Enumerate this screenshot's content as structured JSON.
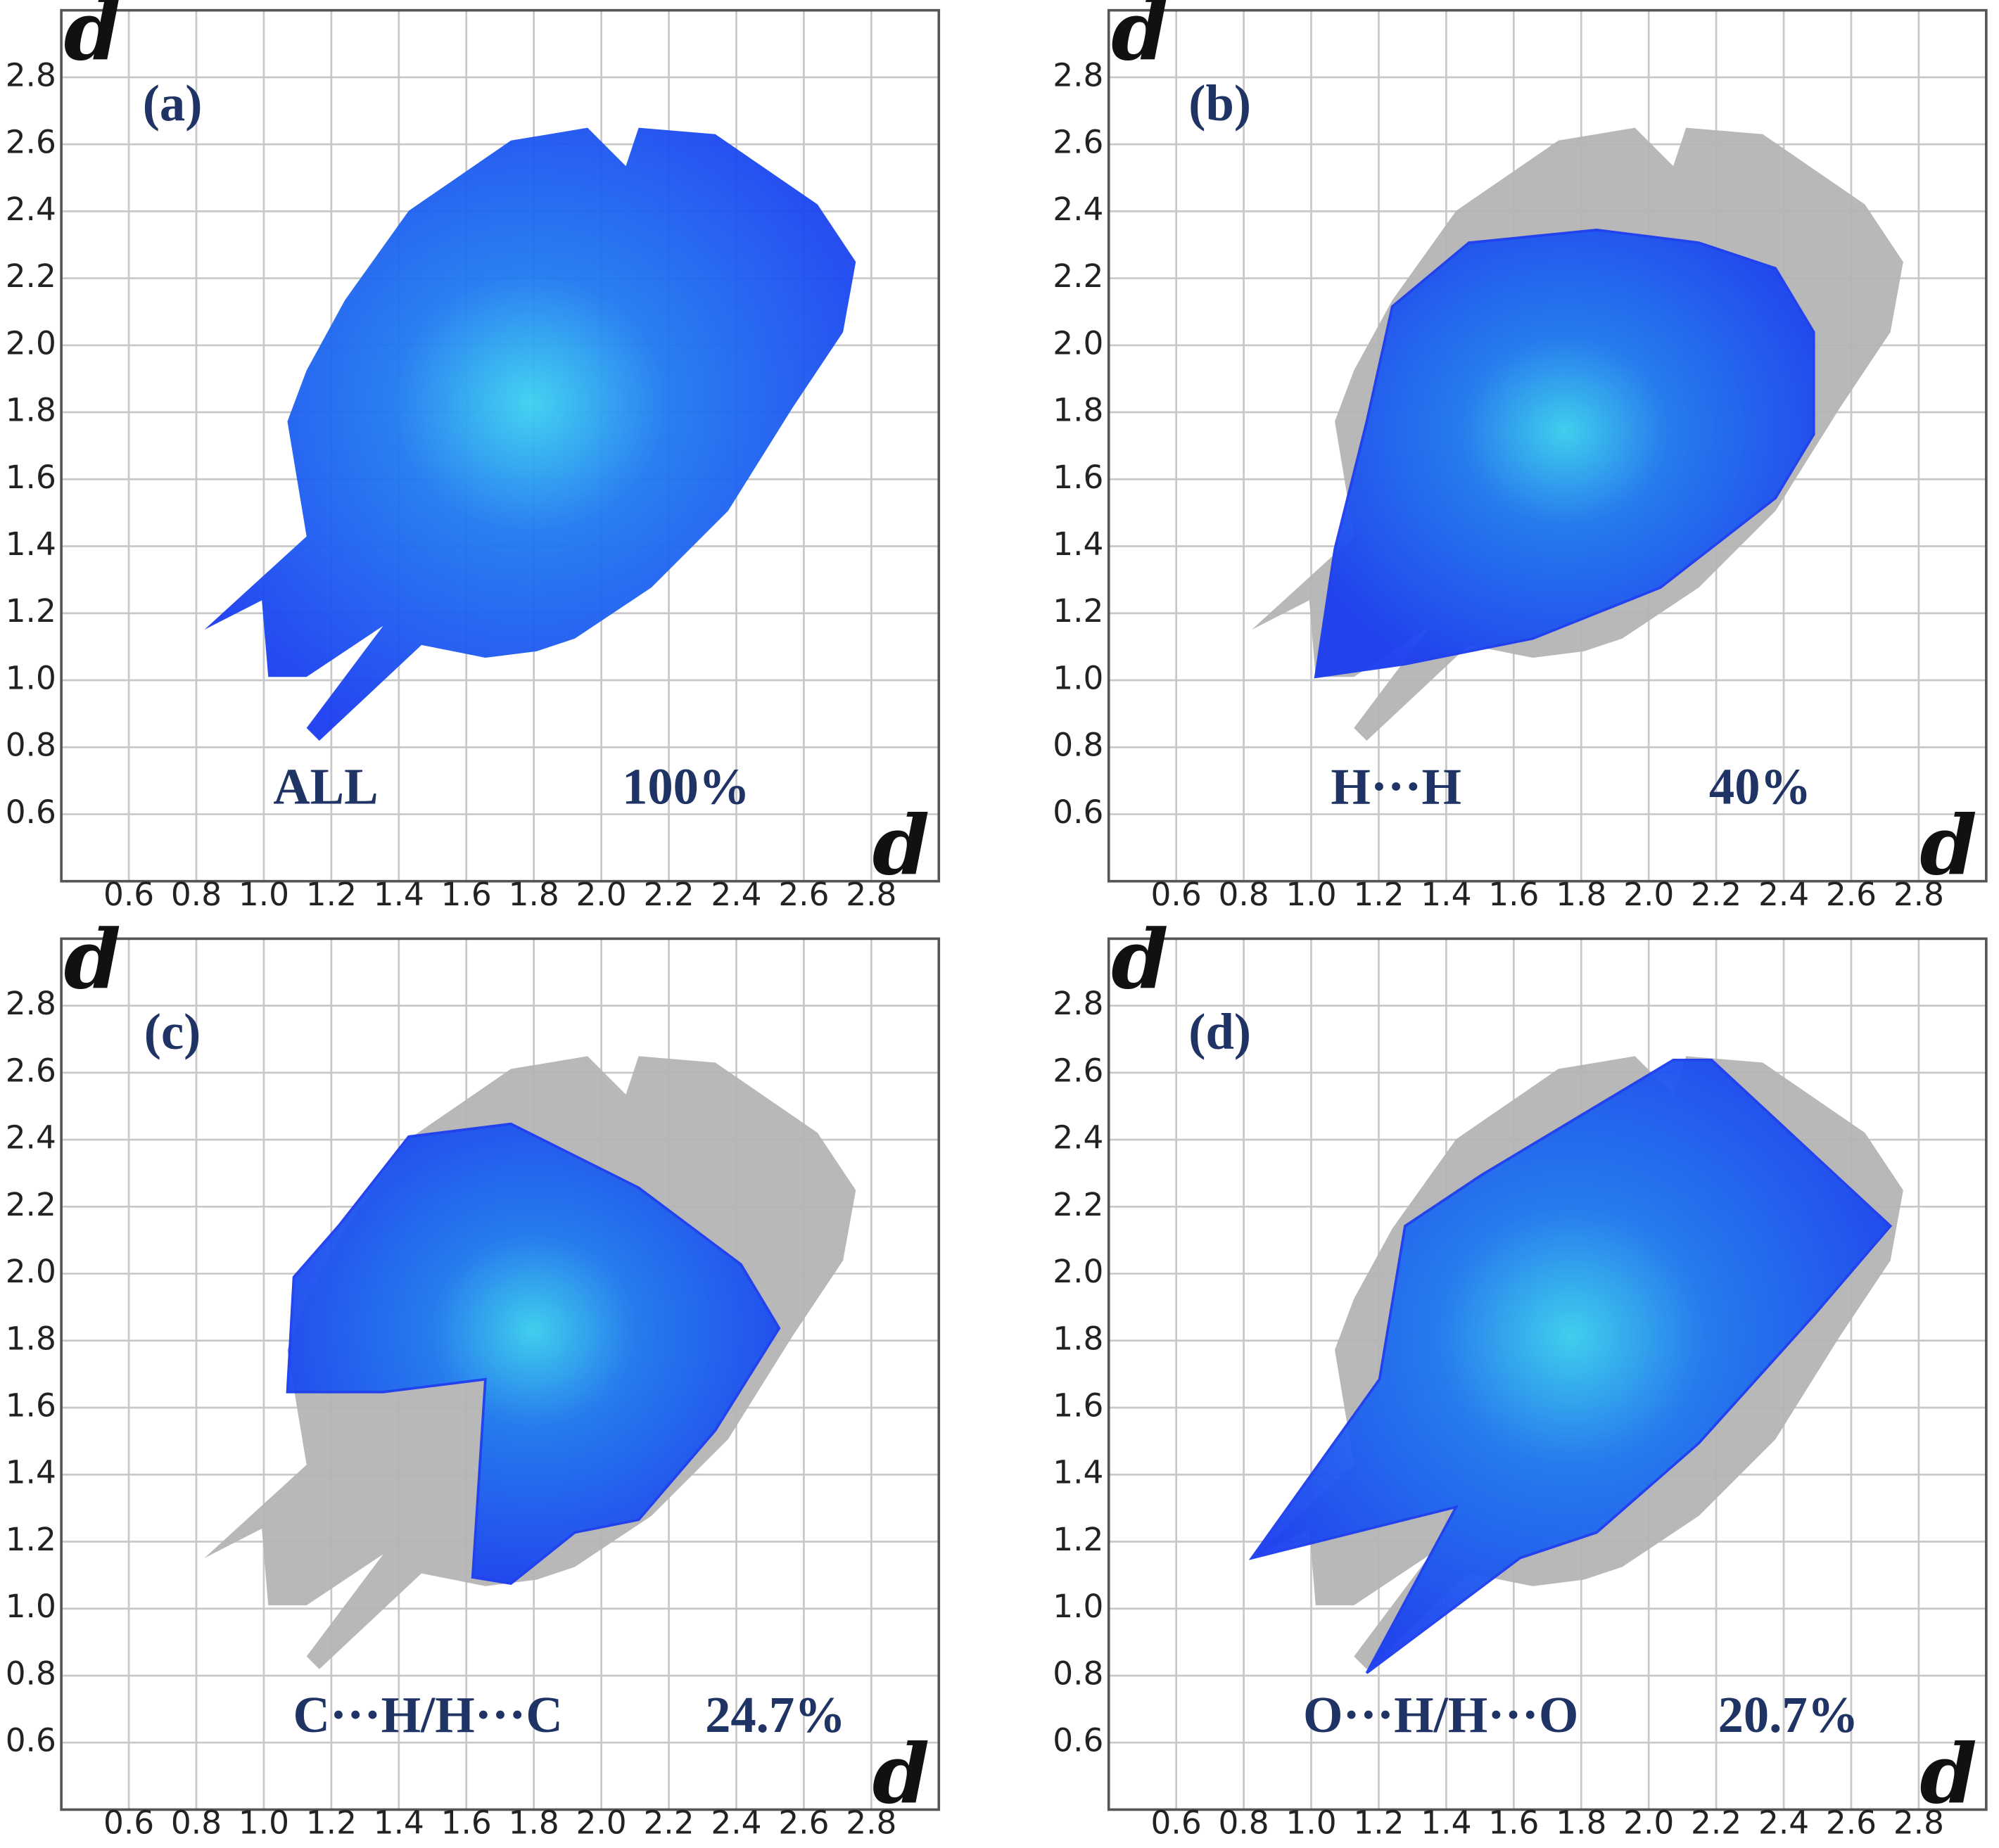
{
  "chart_data": [
    {
      "type": "fingerprint",
      "title": "(a)",
      "contact": "ALL",
      "values": [
        100
      ],
      "value_labels": [
        "100%"
      ],
      "xlabel": "d",
      "ylabel": "d",
      "xlim": [
        0.4,
        3.0
      ],
      "ylim": [
        0.4,
        3.0
      ],
      "xticks": [
        0.6,
        0.8,
        {
          "value": 1,
          "label": "1.0"
        },
        1.2,
        1.4,
        1.6,
        1.8,
        {
          "value": 2,
          "label": "2.0"
        },
        2.2,
        2.4,
        2.6,
        2.8
      ],
      "yticks": [
        0.6,
        0.8,
        {
          "value": 1,
          "label": "1.0"
        },
        1.2,
        1.4,
        1.6,
        1.8,
        {
          "value": 2,
          "label": "2.0"
        },
        2.2,
        2.4,
        2.6,
        2.8
      ],
      "grid": true,
      "color": "#1a3cf0"
    },
    {
      "type": "fingerprint",
      "title": "(b)",
      "contact": "H···H",
      "values": [
        40
      ],
      "value_labels": [
        "40%"
      ],
      "xlabel": "d",
      "ylabel": "d",
      "xlim": [
        0.4,
        3.0
      ],
      "ylim": [
        0.4,
        3.0
      ],
      "xticks": [
        0.6,
        0.8,
        {
          "value": 1,
          "label": "1.0"
        },
        1.2,
        1.4,
        1.6,
        1.8,
        {
          "value": 2,
          "label": "2.0"
        },
        2.2,
        2.4,
        2.6,
        2.8
      ],
      "yticks": [
        0.6,
        0.8,
        {
          "value": 1,
          "label": "1.0"
        },
        1.2,
        1.4,
        1.6,
        1.8,
        {
          "value": 2,
          "label": "2.0"
        },
        2.2,
        2.4,
        2.6,
        2.8
      ],
      "grid": true,
      "color": "#1a3cf0"
    },
    {
      "type": "fingerprint",
      "title": "(c)",
      "contact": "C···H/H···C",
      "values": [
        24.7
      ],
      "value_labels": [
        "24.7%"
      ],
      "xlabel": "d",
      "ylabel": "d",
      "xlim": [
        0.4,
        3.0
      ],
      "ylim": [
        0.4,
        3.0
      ],
      "xticks": [
        0.6,
        0.8,
        {
          "value": 1,
          "label": "1.0"
        },
        1.2,
        1.4,
        1.6,
        1.8,
        {
          "value": 2,
          "label": "2.0"
        },
        2.2,
        2.4,
        2.6,
        2.8
      ],
      "yticks": [
        0.6,
        0.8,
        {
          "value": 1,
          "label": "1.0"
        },
        1.2,
        1.4,
        1.6,
        1.8,
        {
          "value": 2,
          "label": "2.0"
        },
        2.2,
        2.4,
        2.6,
        2.8
      ],
      "grid": true,
      "color": "#1a3cf0"
    },
    {
      "type": "fingerprint",
      "title": "(d)",
      "contact": "O···H/H···O",
      "values": [
        20.7
      ],
      "value_labels": [
        "20.7%"
      ],
      "xlabel": "d",
      "ylabel": "d",
      "xlim": [
        0.4,
        3.0
      ],
      "ylim": [
        0.4,
        3.0
      ],
      "xticks": [
        0.6,
        0.8,
        {
          "value": 1,
          "label": "1.0"
        },
        1.2,
        1.4,
        1.6,
        1.8,
        {
          "value": 2,
          "label": "2.0"
        },
        2.2,
        2.4,
        2.6,
        2.8
      ],
      "yticks": [
        0.6,
        0.8,
        {
          "value": 1,
          "label": "1.0"
        },
        1.2,
        1.4,
        1.6,
        1.8,
        {
          "value": 2,
          "label": "2.0"
        },
        2.2,
        2.4,
        2.6,
        2.8
      ],
      "grid": true,
      "color": "#1a3cf0"
    }
  ]
}
